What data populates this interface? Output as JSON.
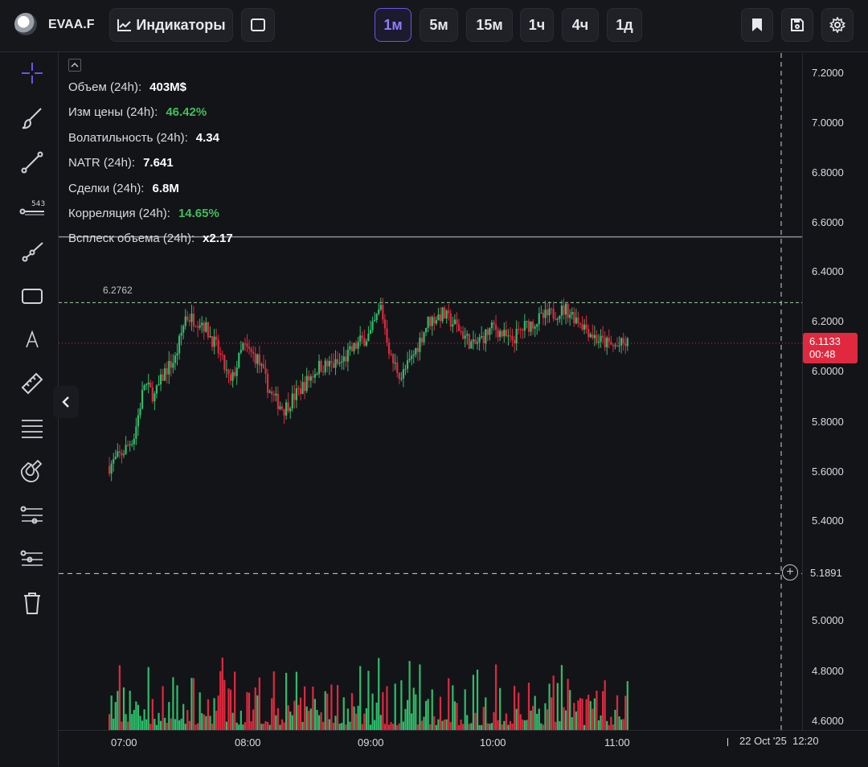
{
  "header": {
    "ticker": "EVAA.F",
    "indicators_label": "Индикаторы",
    "timeframes": [
      {
        "label": "1м",
        "active": true
      },
      {
        "label": "5м",
        "active": false
      },
      {
        "label": "15м",
        "active": false
      },
      {
        "label": "1ч",
        "active": false
      },
      {
        "label": "4ч",
        "active": false
      },
      {
        "label": "1д",
        "active": false
      }
    ]
  },
  "icons": {
    "toolbar": [
      "indicators-icon",
      "square-icon",
      "bookmark-icon",
      "save-icon",
      "gear-icon"
    ],
    "tools": [
      "crosshair-icon",
      "brush-icon",
      "trendline-icon",
      "price-range-icon",
      "ray-icon",
      "rectangle-icon",
      "text-icon",
      "ruler-icon",
      "horizontal-lines-icon",
      "magnet-icon",
      "fib-icon",
      "levels-icon",
      "trash-icon"
    ]
  },
  "stats": [
    {
      "label": "Объем (24h):",
      "value": "403M$",
      "color": "white"
    },
    {
      "label": "Изм цены  (24h):",
      "value": "46.42%",
      "color": "green"
    },
    {
      "label": "Волатильность  (24h):",
      "value": "4.34",
      "color": "white"
    },
    {
      "label": "NATR (24h):",
      "value": "7.641",
      "color": "white"
    },
    {
      "label": "Сделки (24h):",
      "value": "6.8M",
      "color": "white"
    },
    {
      "label": "Корреляция (24h):",
      "value": "14.65%",
      "color": "green"
    },
    {
      "label": "Всплеск объема (24h):",
      "value": "x2.17",
      "color": "white"
    }
  ],
  "price_axis": {
    "labels": [
      "7.2000",
      "7.0000",
      "6.8000",
      "6.6000",
      "6.4000",
      "6.2000",
      "6.0000",
      "5.8000",
      "5.6000",
      "5.4000",
      "5.0000",
      "4.8000",
      "4.6000"
    ],
    "current_price": "6.1133",
    "countdown": "00:48",
    "crosshair_price": "5.1891"
  },
  "levels": {
    "horizontal_line_label": "6.2762"
  },
  "time_axis": {
    "labels": [
      "07:00",
      "08:00",
      "09:00",
      "10:00",
      "11:00"
    ],
    "crosshair_date": "22 Oct '25",
    "crosshair_time": "12:20"
  },
  "colors": {
    "up": "#2ebd6b",
    "down": "#e0293f",
    "accent": "#6a55e6",
    "background": "#131418"
  },
  "chart_data": {
    "type": "candlestick",
    "x_range": [
      "06:53",
      "11:05"
    ],
    "ylim": [
      4.55,
      7.28
    ],
    "current_price": 6.1133,
    "levels": [
      6.2762,
      6.54,
      5.1891
    ],
    "anchors": [
      [
        "06:53",
        5.62
      ],
      [
        "07:00",
        5.68
      ],
      [
        "07:05",
        5.74
      ],
      [
        "07:10",
        5.95
      ],
      [
        "07:15",
        5.9
      ],
      [
        "07:20",
        6.0
      ],
      [
        "07:25",
        6.05
      ],
      [
        "07:30",
        6.22
      ],
      [
        "07:38",
        6.2
      ],
      [
        "07:45",
        6.1
      ],
      [
        "07:52",
        5.95
      ],
      [
        "07:58",
        6.1
      ],
      [
        "08:05",
        6.05
      ],
      [
        "08:12",
        5.9
      ],
      [
        "08:18",
        5.85
      ],
      [
        "08:25",
        5.92
      ],
      [
        "08:35",
        6.02
      ],
      [
        "08:45",
        6.03
      ],
      [
        "08:55",
        6.12
      ],
      [
        "09:00",
        6.15
      ],
      [
        "09:05",
        6.26
      ],
      [
        "09:10",
        6.05
      ],
      [
        "09:15",
        5.98
      ],
      [
        "09:20",
        6.05
      ],
      [
        "09:28",
        6.2
      ],
      [
        "09:35",
        6.23
      ],
      [
        "09:42",
        6.18
      ],
      [
        "09:50",
        6.1
      ],
      [
        "10:00",
        6.18
      ],
      [
        "10:08",
        6.12
      ],
      [
        "10:15",
        6.18
      ],
      [
        "10:25",
        6.22
      ],
      [
        "10:35",
        6.25
      ],
      [
        "10:42",
        6.2
      ],
      [
        "10:50",
        6.13
      ],
      [
        "10:58",
        6.1
      ],
      [
        "11:05",
        6.11
      ]
    ],
    "volume_range": [
      0,
      0.8
    ]
  }
}
